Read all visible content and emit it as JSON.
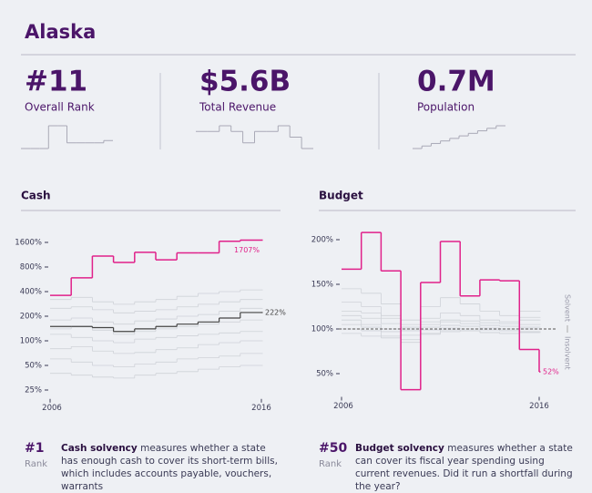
{
  "header": {
    "title": "Alaska"
  },
  "stats": [
    {
      "value": "#11",
      "label": "Overall Rank",
      "sparkline": [
        10,
        10,
        10,
        30,
        30,
        15,
        15,
        15,
        15,
        17
      ]
    },
    {
      "value": "$5.6B",
      "label": "Total Revenue",
      "sparkline": [
        6,
        6,
        7,
        6,
        4,
        6,
        6,
        7,
        5,
        3
      ]
    },
    {
      "value": "0.7M",
      "label": "Population",
      "sparkline": [
        1,
        2,
        3,
        4,
        5,
        6,
        7,
        8,
        9,
        10
      ]
    }
  ],
  "chart_data": [
    {
      "type": "step",
      "title": "Cash",
      "log_scale": true,
      "x": [
        2006,
        2007,
        2008,
        2009,
        2010,
        2011,
        2012,
        2013,
        2014,
        2015,
        2016
      ],
      "xlim": [
        2006,
        2016
      ],
      "xticks": [
        2006,
        2016
      ],
      "ylim": [
        20,
        2200
      ],
      "yticks": [
        {
          "value": 25,
          "label": "25%"
        },
        {
          "value": 50,
          "label": "50%"
        },
        {
          "value": 100,
          "label": "100%"
        },
        {
          "value": 200,
          "label": "200%"
        },
        {
          "value": 400,
          "label": "400%"
        },
        {
          "value": 800,
          "label": "800%"
        },
        {
          "value": 1600,
          "label": "1600%"
        }
      ],
      "background_color": "#cfd2d8",
      "background_series": [
        [
          120,
          110,
          100,
          95,
          105,
          110,
          115,
          120,
          125,
          130,
          130
        ],
        [
          250,
          260,
          240,
          220,
          230,
          240,
          260,
          280,
          300,
          320,
          320
        ],
        [
          80,
          85,
          75,
          70,
          72,
          78,
          82,
          90,
          95,
          100,
          100
        ],
        [
          60,
          55,
          50,
          48,
          52,
          55,
          60,
          62,
          65,
          70,
          70
        ],
        [
          180,
          190,
          170,
          160,
          175,
          185,
          200,
          210,
          230,
          250,
          250
        ],
        [
          40,
          38,
          36,
          35,
          38,
          40,
          42,
          45,
          48,
          50,
          50
        ],
        [
          320,
          340,
          300,
          280,
          300,
          320,
          350,
          380,
          400,
          420,
          420
        ],
        [
          140,
          150,
          135,
          120,
          130,
          140,
          150,
          160,
          170,
          180,
          180
        ]
      ],
      "series": [
        {
          "color": "#e0218a",
          "values": [
            360,
            590,
            1090,
            910,
            1210,
            980,
            1190,
            1190,
            1650,
            1707,
            1707
          ],
          "end_label": "1707%"
        },
        {
          "color": "#444444",
          "values": [
            150,
            150,
            145,
            130,
            140,
            150,
            160,
            170,
            190,
            222,
            222
          ],
          "end_label": "222%"
        }
      ]
    },
    {
      "type": "step",
      "title": "Budget",
      "log_scale": false,
      "x": [
        2006,
        2007,
        2008,
        2009,
        2010,
        2011,
        2012,
        2013,
        2014,
        2015,
        2016
      ],
      "xlim": [
        2006,
        2016
      ],
      "xticks": [
        2006,
        2016
      ],
      "ylim": [
        25,
        215
      ],
      "yticks": [
        {
          "value": 50,
          "label": "50%"
        },
        {
          "value": 100,
          "label": "100%"
        },
        {
          "value": 150,
          "label": "150%"
        },
        {
          "value": 200,
          "label": "200%"
        }
      ],
      "reference_line": 100,
      "above_label": "Solvent",
      "below_label": "Insolvent",
      "background_color": "#cfd2d8",
      "background_series": [
        [
          110,
          105,
          100,
          98,
          102,
          104,
          103,
          101,
          100,
          102,
          102
        ],
        [
          120,
          118,
          112,
          105,
          108,
          110,
          109,
          107,
          106,
          110,
          110
        ],
        [
          95,
          92,
          90,
          88,
          94,
          97,
          98,
          96,
          95,
          97,
          97
        ],
        [
          130,
          125,
          115,
          102,
          112,
          118,
          115,
          110,
          108,
          113,
          113
        ],
        [
          105,
          102,
          97,
          93,
          99,
          101,
          100,
          99,
          98,
          100,
          100
        ],
        [
          145,
          140,
          128,
          110,
          125,
          135,
          128,
          120,
          115,
          120,
          120
        ],
        [
          100,
          98,
          92,
          85,
          95,
          99,
          98,
          96,
          95,
          96,
          96
        ],
        [
          115,
          112,
          106,
          100,
          105,
          108,
          106,
          104,
          103,
          105,
          105
        ]
      ],
      "series": [
        {
          "color": "#e0218a",
          "values": [
            167,
            208,
            165,
            32,
            152,
            198,
            137,
            155,
            154,
            77,
            52
          ],
          "end_label": "52%"
        }
      ]
    }
  ],
  "notes": [
    {
      "rank": "#1",
      "rank_label": "Rank",
      "term": "Cash solvency",
      "text": " measures whether a state has enough cash to cover its short-term bills, which includes accounts payable, vouchers, warrants"
    },
    {
      "rank": "#50",
      "rank_label": "Rank",
      "term": "Budget solvency",
      "text": " measures whether a state can cover its fiscal year spending using current revenues. Did it run a shortfall during the year?"
    }
  ]
}
